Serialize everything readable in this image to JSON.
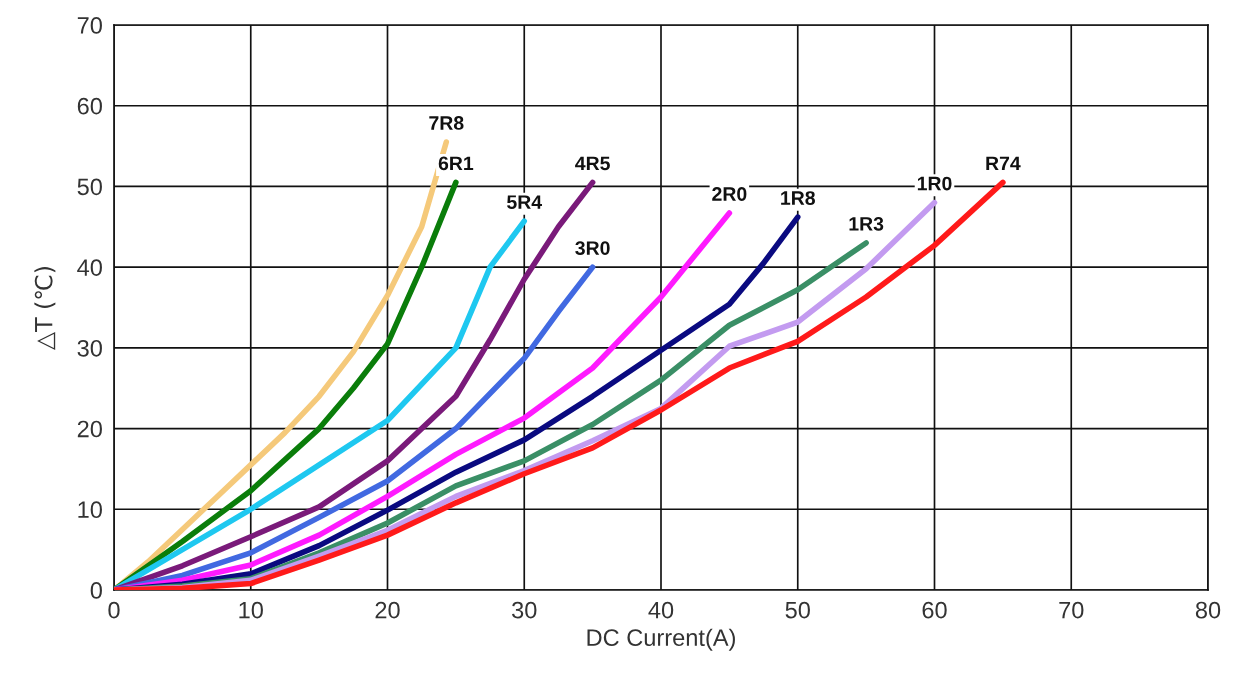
{
  "chart_data": {
    "type": "line",
    "xlabel": "DC Current(A)",
    "ylabel": "△T (℃)",
    "xlim": [
      0,
      80
    ],
    "xticks": [
      0,
      10,
      20,
      30,
      40,
      50,
      60,
      70,
      80
    ],
    "ylim": [
      0,
      70
    ],
    "yticks": [
      0,
      10,
      20,
      30,
      40,
      50,
      60,
      70
    ],
    "grid": true,
    "legend": false,
    "line_style": "solid",
    "marker": "none",
    "series": [
      {
        "name": "7R8",
        "color": "#f5c97a",
        "x": [
          0,
          2.5,
          5,
          7.5,
          10,
          12.5,
          15,
          17.5,
          20,
          22.5,
          24.3
        ],
        "values": [
          0,
          3.5,
          7.5,
          11.5,
          15.5,
          19.5,
          24,
          29.5,
          36.5,
          45,
          55.5
        ]
      },
      {
        "name": "6R1",
        "color": "#0a7d0a",
        "x": [
          0,
          5,
          10,
          15,
          17.5,
          20,
          22.5,
          25
        ],
        "values": [
          0,
          6,
          12.3,
          20,
          25,
          30.5,
          40,
          50.5
        ]
      },
      {
        "name": "5R4",
        "color": "#1ec8f0",
        "x": [
          0,
          5,
          10,
          15,
          20,
          25,
          27.5,
          30
        ],
        "values": [
          0,
          5,
          10,
          15.5,
          21,
          30,
          40,
          45.7
        ]
      },
      {
        "name": "4R5",
        "color": "#7a1a7a",
        "x": [
          0,
          5,
          10,
          15,
          20,
          25,
          27.5,
          30,
          32.5,
          35
        ],
        "values": [
          0,
          3,
          6.6,
          10.3,
          16,
          24,
          31,
          38.5,
          45,
          50.5
        ]
      },
      {
        "name": "3R0",
        "color": "#4169e1",
        "x": [
          0,
          5,
          10,
          15,
          20,
          25,
          30,
          32.5,
          35
        ],
        "values": [
          0,
          1.8,
          4.6,
          9,
          13.5,
          20,
          28.7,
          34.5,
          40
        ]
      },
      {
        "name": "2R0",
        "color": "#ff1aff",
        "x": [
          0,
          5,
          10,
          15,
          20,
          25,
          30,
          35,
          40,
          42.5,
          45
        ],
        "values": [
          0,
          1.2,
          3.1,
          6.8,
          11.6,
          16.8,
          21.3,
          27.5,
          36.3,
          41.5,
          46.7
        ]
      },
      {
        "name": "1R8",
        "color": "#0a0a80",
        "x": [
          0,
          5,
          10,
          15,
          20,
          25,
          30,
          35,
          40,
          45,
          47.5,
          50
        ],
        "values": [
          0,
          0.7,
          2,
          5.5,
          9.9,
          14.6,
          18.6,
          24,
          29.7,
          35.4,
          40.5,
          46.2
        ]
      },
      {
        "name": "1R3",
        "color": "#3a8f66",
        "x": [
          0,
          5,
          10,
          15,
          20,
          25,
          30,
          35,
          40,
          45,
          50,
          55
        ],
        "values": [
          0,
          0.5,
          1.4,
          4.6,
          8.3,
          12.9,
          16,
          20.5,
          26,
          32.8,
          37.2,
          43
        ]
      },
      {
        "name": "1R0",
        "color": "#c39bf0",
        "x": [
          0,
          5,
          10,
          15,
          20,
          25,
          30,
          35,
          40,
          45,
          50,
          55,
          60
        ],
        "values": [
          0,
          0.3,
          1.2,
          4.2,
          7.4,
          11.6,
          14.8,
          18.5,
          22.5,
          30.2,
          33.2,
          39.8,
          48
        ]
      },
      {
        "name": "R74",
        "color": "#ff1a1a",
        "x": [
          0,
          5,
          10,
          15,
          20,
          25,
          30,
          35,
          40,
          45,
          50,
          55,
          60,
          65
        ],
        "values": [
          0,
          0.2,
          0.8,
          3.7,
          6.8,
          10.8,
          14.4,
          17.6,
          22.3,
          27.5,
          30.8,
          36.3,
          42.7,
          50.5
        ]
      }
    ]
  }
}
